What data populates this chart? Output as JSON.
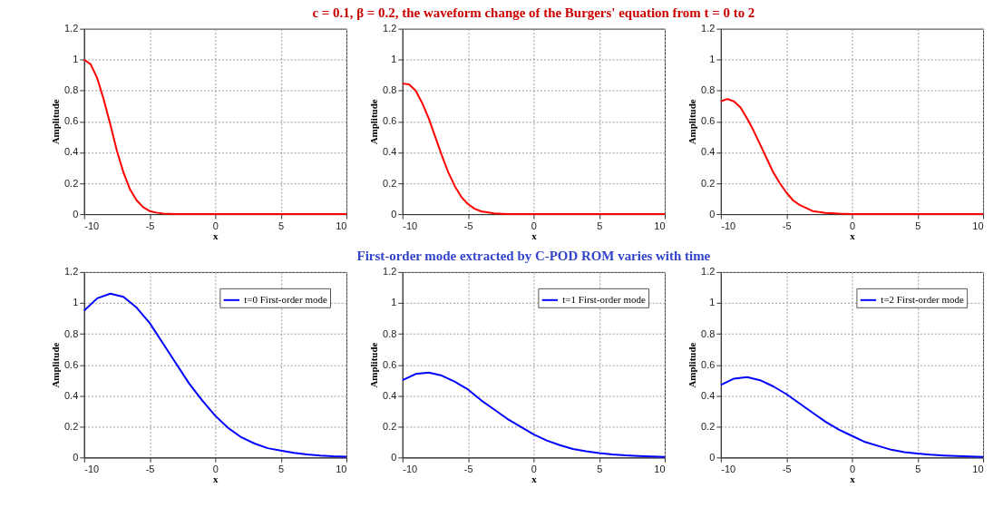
{
  "chart_data": [
    {
      "type": "line",
      "xlabel": "x",
      "ylabel": "Amplitude",
      "xlim": [
        -10,
        10
      ],
      "ylim": [
        0,
        1.2
      ],
      "xticks": [
        -10,
        -5,
        0,
        5,
        10
      ],
      "yticks": [
        0,
        0.2,
        0.4,
        0.6,
        0.8,
        1,
        1.2
      ],
      "grid": true,
      "legend": false,
      "marker": "none",
      "line_style": "solid",
      "series": [
        {
          "color": "#ff0000",
          "x": [
            -10,
            -9.5,
            -9,
            -8.5,
            -8,
            -7.5,
            -7,
            -6.5,
            -6,
            -5.5,
            -5,
            -4.5,
            -4,
            -3,
            -2,
            0,
            5,
            10
          ],
          "values": [
            1.0,
            0.97,
            0.88,
            0.74,
            0.58,
            0.41,
            0.27,
            0.16,
            0.09,
            0.045,
            0.02,
            0.01,
            0.004,
            0.001,
            0,
            0,
            0,
            0
          ]
        }
      ]
    },
    {
      "type": "line",
      "title": "c = 0.1, β = 0.2, the waveform change of the Burgers' equation from t = 0 to 2",
      "xlabel": "x",
      "ylabel": "Amplitude",
      "xlim": [
        -10,
        10
      ],
      "ylim": [
        0,
        1.2
      ],
      "xticks": [
        -10,
        -5,
        0,
        5,
        10
      ],
      "yticks": [
        0,
        0.2,
        0.4,
        0.6,
        0.8,
        1,
        1.2
      ],
      "grid": true,
      "legend": false,
      "marker": "none",
      "line_style": "solid",
      "series": [
        {
          "color": "#ff0000",
          "x": [
            -10,
            -9.5,
            -9,
            -8.5,
            -8,
            -7.5,
            -7,
            -6.5,
            -6,
            -5.5,
            -5,
            -4.5,
            -4,
            -3,
            -2,
            0,
            5,
            10
          ],
          "values": [
            0.845,
            0.84,
            0.8,
            0.72,
            0.62,
            0.5,
            0.38,
            0.27,
            0.18,
            0.11,
            0.065,
            0.035,
            0.018,
            0.005,
            0.001,
            0,
            0,
            0
          ]
        }
      ]
    },
    {
      "type": "line",
      "xlabel": "x",
      "ylabel": "Amplitude",
      "xlim": [
        -10,
        10
      ],
      "ylim": [
        0,
        1.2
      ],
      "xticks": [
        -10,
        -5,
        0,
        5,
        10
      ],
      "yticks": [
        0,
        0.2,
        0.4,
        0.6,
        0.8,
        1,
        1.2
      ],
      "grid": true,
      "legend": false,
      "marker": "none",
      "line_style": "solid",
      "series": [
        {
          "color": "#ff0000",
          "x": [
            -10,
            -9.5,
            -9,
            -8.5,
            -8,
            -7.5,
            -7,
            -6.5,
            -6,
            -5.5,
            -5,
            -4.5,
            -4,
            -3,
            -2,
            -1,
            0,
            5,
            10
          ],
          "values": [
            0.73,
            0.745,
            0.73,
            0.69,
            0.62,
            0.54,
            0.45,
            0.36,
            0.27,
            0.2,
            0.14,
            0.09,
            0.06,
            0.02,
            0.008,
            0.003,
            0.001,
            0,
            0
          ]
        }
      ]
    },
    {
      "type": "line",
      "xlabel": "x",
      "ylabel": "Amplitude",
      "xlim": [
        -10,
        10
      ],
      "ylim": [
        0,
        1.2
      ],
      "xticks": [
        -10,
        -5,
        0,
        5,
        10
      ],
      "yticks": [
        0,
        0.2,
        0.4,
        0.6,
        0.8,
        1,
        1.2
      ],
      "grid": true,
      "legend": "top right",
      "marker": "none",
      "line_style": "solid",
      "series": [
        {
          "name": "t=0 First-order mode",
          "color": "#0000ff",
          "x": [
            -10,
            -9,
            -8,
            -7,
            -6,
            -5,
            -4,
            -3,
            -2,
            -1,
            0,
            1,
            2,
            3,
            4,
            5,
            6,
            7,
            8,
            9,
            10
          ],
          "values": [
            0.95,
            1.03,
            1.06,
            1.04,
            0.97,
            0.87,
            0.74,
            0.61,
            0.48,
            0.37,
            0.27,
            0.19,
            0.13,
            0.09,
            0.06,
            0.045,
            0.03,
            0.02,
            0.013,
            0.008,
            0.005
          ]
        }
      ]
    },
    {
      "type": "line",
      "title": "First-order mode extracted by C-POD ROM varies with time",
      "xlabel": "x",
      "ylabel": "Amplitude",
      "xlim": [
        -10,
        10
      ],
      "ylim": [
        0,
        1.2
      ],
      "xticks": [
        -10,
        -5,
        0,
        5,
        10
      ],
      "yticks": [
        0,
        0.2,
        0.4,
        0.6,
        0.8,
        1,
        1.2
      ],
      "grid": true,
      "legend": "top right",
      "marker": "none",
      "line_style": "solid",
      "series": [
        {
          "name": "t=1 First-order mode",
          "color": "#0000ff",
          "x": [
            -10,
            -9,
            -8,
            -7,
            -6,
            -5,
            -4,
            -3,
            -2,
            -1,
            0,
            1,
            2,
            3,
            4,
            5,
            6,
            7,
            8,
            9,
            10
          ],
          "values": [
            0.5,
            0.54,
            0.55,
            0.53,
            0.49,
            0.44,
            0.37,
            0.31,
            0.25,
            0.2,
            0.15,
            0.11,
            0.08,
            0.055,
            0.04,
            0.028,
            0.02,
            0.014,
            0.01,
            0.007,
            0.004
          ]
        }
      ]
    },
    {
      "type": "line",
      "xlabel": "x",
      "ylabel": "Amplitude",
      "xlim": [
        -10,
        10
      ],
      "ylim": [
        0,
        1.2
      ],
      "xticks": [
        -10,
        -5,
        0,
        5,
        10
      ],
      "yticks": [
        0,
        0.2,
        0.4,
        0.6,
        0.8,
        1,
        1.2
      ],
      "grid": true,
      "legend": "top right",
      "marker": "none",
      "line_style": "solid",
      "series": [
        {
          "name": "t=2 First-order mode",
          "color": "#0000ff",
          "x": [
            -10,
            -9,
            -8,
            -7,
            -6,
            -5,
            -4,
            -3,
            -2,
            -1,
            0,
            1,
            2,
            3,
            4,
            5,
            6,
            7,
            8,
            9,
            10
          ],
          "values": [
            0.47,
            0.51,
            0.52,
            0.5,
            0.46,
            0.41,
            0.35,
            0.29,
            0.23,
            0.18,
            0.14,
            0.1,
            0.075,
            0.05,
            0.035,
            0.025,
            0.018,
            0.013,
            0.009,
            0.006,
            0.004
          ]
        }
      ]
    }
  ]
}
